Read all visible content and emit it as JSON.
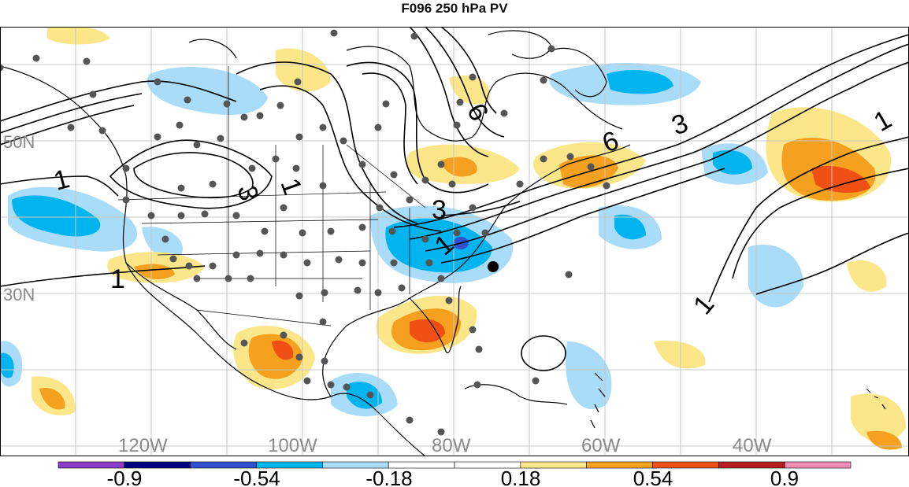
{
  "title": "F096 250 hPa PV",
  "latitude_labels": [
    "50N",
    "30N"
  ],
  "longitude_labels": [
    "120W",
    "100W",
    "80W",
    "60W",
    "40W"
  ],
  "contour_labels": {
    "west_1": "1",
    "sw_1": "1",
    "low_3": "3",
    "low_1": "1",
    "trough_3": "3",
    "trough_1": "1",
    "north_6": "6",
    "jet_6": "6",
    "jet_3": "3",
    "east_1": "1",
    "atl_1": "1"
  },
  "colorbar": {
    "colors": [
      "#8c3cc8",
      "#000080",
      "#3050d0",
      "#00b4f0",
      "#a8dcf8",
      "#ffffff",
      "#ffffff",
      "#fce68a",
      "#f5a01e",
      "#f05014",
      "#b41e1e",
      "#f08cb4"
    ],
    "tick_labels": [
      "-0.9",
      "-0.54",
      "-0.18",
      "0.18",
      "0.54",
      "0.9"
    ]
  },
  "colors": {
    "light_blue": "#a8dcf8",
    "blue": "#00b4f0",
    "dark_blue": "#3050d0",
    "light_yellow": "#fce68a",
    "orange": "#f5a01e",
    "red": "#f05014",
    "station_dot": "#555555"
  }
}
